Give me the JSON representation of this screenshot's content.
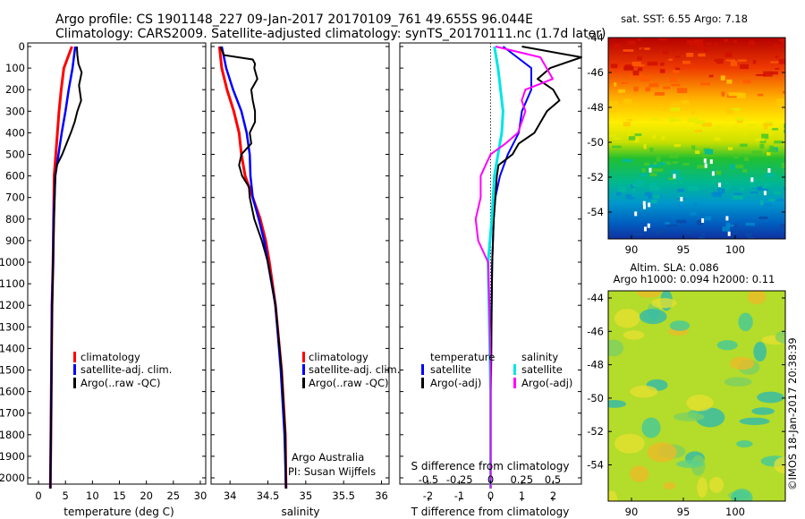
{
  "title_line1": "Argo profile: CS 1901148_227 09-Jan-2017 20170109_761 49.655S 96.044E",
  "title_line2": "Climatology: CARS2009. Satellite-adjusted climatology: synTS_20170111.nc (1.7d later)",
  "colors": {
    "climatology": "#ff0000",
    "satellite": "#0000ff",
    "argo": "#000000",
    "s_satellite": "#00e5e5",
    "s_argo": "#ff00ff"
  },
  "depth_ticks": [
    0,
    100,
    200,
    300,
    400,
    500,
    600,
    700,
    800,
    900,
    1000,
    1100,
    1200,
    1300,
    1400,
    1500,
    1600,
    1700,
    1800,
    1900,
    2000
  ],
  "temp_panel": {
    "xlabel": "temperature (deg C)",
    "xlim": [
      -2,
      31
    ],
    "xticks": [
      0,
      5,
      10,
      15,
      20,
      25,
      30
    ],
    "legend": [
      "climatology",
      "satellite-adj. clim.",
      "Argo(..raw -QC)"
    ]
  },
  "sal_panel": {
    "xlabel": "salinity",
    "xlim": [
      33.75,
      36.1
    ],
    "xticks": [
      "34",
      "34.5",
      "35",
      "35.5",
      "36"
    ],
    "legend": [
      "climatology",
      "satellite-adj. clim.",
      "Argo(..raw -QC)"
    ],
    "credit1": "Argo Australia",
    "credit2": "PI: Susan Wijffels"
  },
  "diff_panel": {
    "xlabel_t": "T difference from climatology",
    "xlabel_s": "S difference from climatology",
    "t_ticks": [
      "-2",
      "-1",
      "0",
      "1",
      "2"
    ],
    "s_ticks": [
      "-0.5",
      "-0.25",
      "0",
      "0.25",
      "0.5"
    ],
    "legend_t_title": "temperature",
    "legend_s_title": "salinity",
    "legend_t": [
      "satellite",
      "Argo(-adj)"
    ],
    "legend_s": [
      "satellite",
      "Argo(-adj)"
    ]
  },
  "sst_map": {
    "title": "sat. SST: 6.55 Argo: 7.18",
    "lat_ticks": [
      "-44",
      "-46",
      "-48",
      "-50",
      "-52",
      "-54"
    ],
    "lon_ticks": [
      "90",
      "95",
      "100"
    ]
  },
  "sla_map": {
    "title1": "Altim. SLA: 0.086",
    "title2": "Argo h1000: 0.094 h2000: 0.11",
    "lat_ticks": [
      "-44",
      "-46",
      "-48",
      "-50",
      "-52",
      "-54"
    ],
    "lon_ticks": [
      "90",
      "95",
      "100"
    ]
  },
  "side_stamp": "©IMOS 18-Jan-2017 20:38:39",
  "chart_data": [
    {
      "type": "line",
      "xlabel": "temperature (deg C)",
      "ylabel": "",
      "xlim": [
        -2,
        31
      ],
      "ylim": [
        2100,
        0
      ],
      "series": [
        {
          "name": "climatology",
          "depth": [
            0,
            100,
            200,
            300,
            400,
            500,
            600,
            800,
            1000,
            1200,
            1500,
            1800,
            2050
          ],
          "values": [
            6.2,
            4.7,
            4.2,
            3.8,
            3.5,
            3.2,
            2.9,
            2.8,
            2.7,
            2.5,
            2.4,
            2.3,
            2.2
          ]
        },
        {
          "name": "satellite-adj. clim.",
          "depth": [
            0,
            100,
            200,
            300,
            400,
            500,
            600,
            800,
            1000,
            1200,
            1500,
            1800,
            2050
          ],
          "values": [
            6.8,
            6.3,
            5.6,
            5.0,
            4.3,
            3.7,
            3.1,
            2.8,
            2.7,
            2.5,
            2.4,
            2.3,
            2.2
          ]
        },
        {
          "name": "Argo(..raw -QC)",
          "depth": [
            0,
            40,
            80,
            120,
            180,
            250,
            300,
            350,
            400,
            450,
            500,
            550,
            600,
            700,
            800,
            1000,
            1300,
            1600,
            2000,
            2050
          ],
          "values": [
            7.1,
            7.2,
            7.4,
            8.0,
            7.5,
            7.9,
            7.2,
            6.7,
            6.0,
            5.2,
            4.4,
            3.4,
            3.1,
            3.0,
            2.9,
            2.7,
            2.5,
            2.4,
            2.2,
            2.2
          ]
        }
      ]
    },
    {
      "type": "line",
      "xlabel": "salinity",
      "ylabel": "",
      "xlim": [
        33.75,
        36.1
      ],
      "ylim": [
        2100,
        0
      ],
      "series": [
        {
          "name": "climatology",
          "depth": [
            0,
            100,
            200,
            300,
            400,
            500,
            600,
            700,
            800,
            900,
            1000,
            1200,
            1500,
            1800,
            2050
          ],
          "values": [
            33.86,
            33.89,
            33.96,
            34.05,
            34.12,
            34.15,
            34.2,
            34.3,
            34.4,
            34.47,
            34.52,
            34.6,
            34.68,
            34.73,
            34.74
          ]
        },
        {
          "name": "satellite-adj. clim.",
          "depth": [
            0,
            50,
            100,
            200,
            300,
            400,
            500,
            600,
            700,
            800,
            900,
            1000,
            1200,
            1500,
            1800,
            2050
          ],
          "values": [
            33.89,
            33.92,
            33.95,
            34.04,
            34.15,
            34.22,
            34.26,
            34.27,
            34.3,
            34.38,
            34.45,
            34.5,
            34.6,
            34.67,
            34.72,
            34.74
          ]
        },
        {
          "name": "Argo(..raw -QC)",
          "depth": [
            0,
            40,
            60,
            80,
            100,
            150,
            200,
            250,
            300,
            350,
            400,
            450,
            500,
            550,
            600,
            650,
            700,
            800,
            900,
            1000,
            1200,
            1500,
            1800,
            2050
          ],
          "values": [
            33.87,
            33.92,
            34.3,
            34.33,
            34.32,
            34.36,
            34.28,
            34.3,
            34.33,
            34.33,
            34.26,
            34.28,
            34.15,
            34.12,
            34.16,
            34.25,
            34.26,
            34.32,
            34.42,
            34.5,
            34.6,
            34.68,
            34.73,
            34.74
          ]
        }
      ]
    },
    {
      "type": "line",
      "xlabel": "T difference from climatology",
      "ylabel": "",
      "xlim": [
        -2.9,
        2.9
      ],
      "ylim": [
        2100,
        0
      ],
      "series": [
        {
          "name": "temperature satellite",
          "depth": [
            0,
            100,
            200,
            300,
            400,
            500,
            600,
            700,
            800,
            1000,
            1300,
            1600,
            2050
          ],
          "values": [
            0.4,
            1.3,
            1.3,
            1.0,
            0.9,
            0.55,
            0.3,
            0.15,
            0.1,
            0.05,
            0.02,
            0.01,
            0.0
          ]
        },
        {
          "name": "temperature Argo(-adj)",
          "depth": [
            0,
            50,
            100,
            150,
            200,
            250,
            300,
            350,
            400,
            450,
            500,
            550,
            600,
            700,
            800,
            1000,
            1300,
            1600,
            2050
          ],
          "values": [
            1.0,
            2.9,
            1.9,
            1.5,
            2.0,
            2.2,
            1.8,
            1.6,
            1.4,
            0.9,
            0.7,
            0.25,
            0.2,
            0.15,
            0.1,
            0.05,
            0.03,
            0.01,
            0.0
          ]
        }
      ]
    },
    {
      "type": "line",
      "xlabel": "S difference from climatology",
      "ylabel": "",
      "xlim": [
        -0.73,
        0.73
      ],
      "ylim": [
        2100,
        0
      ],
      "series": [
        {
          "name": "salinity satellite",
          "depth": [
            0,
            100,
            200,
            300,
            400,
            500,
            600,
            800,
            1000,
            1300,
            1600,
            2050
          ],
          "values": [
            0.03,
            0.06,
            0.08,
            0.1,
            0.09,
            0.06,
            0.03,
            0.01,
            -0.02,
            -0.01,
            0.0,
            0.0
          ]
        },
        {
          "name": "salinity Argo(-adj)",
          "depth": [
            0,
            50,
            100,
            150,
            200,
            250,
            300,
            350,
            400,
            450,
            500,
            550,
            600,
            700,
            800,
            900,
            1000,
            1200,
            1500,
            1800,
            2050
          ],
          "values": [
            0.04,
            0.4,
            0.45,
            0.5,
            0.28,
            0.25,
            0.28,
            0.25,
            0.22,
            0.12,
            0.0,
            -0.04,
            -0.08,
            -0.08,
            -0.12,
            -0.1,
            -0.02,
            -0.01,
            0.0,
            0.0,
            0.0
          ]
        }
      ]
    }
  ]
}
